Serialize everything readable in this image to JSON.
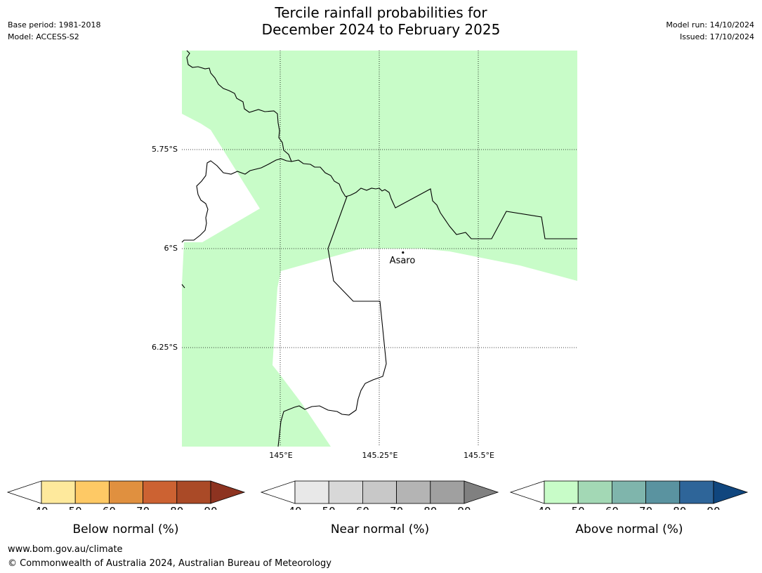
{
  "title_line1": "Tercile rainfall probabilities for",
  "title_line2": "December 2024 to February 2025",
  "meta_left": {
    "base_period": "Base period: 1981-2018",
    "model": "Model: ACCESS-S2"
  },
  "meta_right": {
    "model_run": "Model run: 14/10/2024",
    "issued": "Issued: 17/10/2024"
  },
  "map": {
    "lat_labels": [
      "5.75°S",
      "6°S",
      "6.25°S"
    ],
    "lon_labels": [
      "145°E",
      "145.25°E",
      "145.5°E"
    ],
    "place": {
      "name": "Asaro",
      "lon": 145.31,
      "lat": -6.01
    },
    "fill_color": "#c8fcc8"
  },
  "legends": [
    {
      "title": "Below normal (%)",
      "ticks": [
        "40",
        "50",
        "60",
        "70",
        "80",
        "90"
      ],
      "colors": [
        "#ffffff",
        "#fee99c",
        "#fec965",
        "#e0903f",
        "#cc6232",
        "#aa4a27",
        "#8d3320"
      ]
    },
    {
      "title": "Near normal (%)",
      "ticks": [
        "40",
        "50",
        "60",
        "70",
        "80",
        "90"
      ],
      "colors": [
        "#ffffff",
        "#e8e8e8",
        "#d8d8d8",
        "#c8c8c8",
        "#b4b4b4",
        "#a0a0a0",
        "#808080"
      ]
    },
    {
      "title": "Above normal (%)",
      "ticks": [
        "40",
        "50",
        "60",
        "70",
        "80",
        "90"
      ],
      "colors": [
        "#ffffff",
        "#c8fcc8",
        "#a3d8b5",
        "#7fb5ac",
        "#5a93a0",
        "#2e6599",
        "#10467e"
      ]
    }
  ],
  "footer": {
    "url": "www.bom.gov.au/climate",
    "copyright": "© Commonwealth of Australia 2024, Australian Bureau of Meteorology"
  }
}
